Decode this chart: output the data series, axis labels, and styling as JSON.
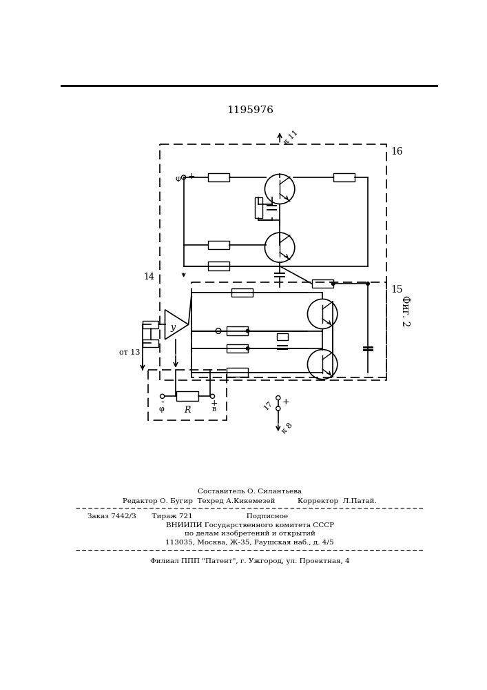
{
  "patent_number": "1195976",
  "fig_label": "Фиг. 2",
  "bg_color": "#ffffff",
  "text_color": "#000000",
  "bottom_texts": {
    "sostavitel": "Составитель О. Силантьева",
    "redaktor": "Редактор О. Бугир  Техред А.Кикемезей          Корректор  Л.Патай.",
    "zakaz": "Заказ 7442/3       Тираж 721                        Подписное",
    "vniip1": "ВНИИПИ Государственного комитета СССР",
    "vniip2": "по делам изобретений и открытий",
    "addr": "113035, Москва, Ж-35, Раушская наб., д. 4/5",
    "filial": "Филиал ППП \"Патент\", г. Ужгород, ул. Проектная, 4"
  }
}
